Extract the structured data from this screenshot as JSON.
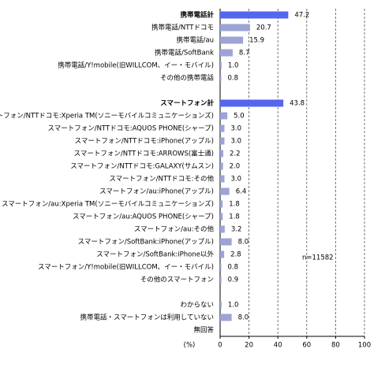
{
  "chart_data": {
    "type": "bar",
    "orientation": "horizontal",
    "categories": [
      "携帯電話計",
      "携帯電話/NTTドコモ",
      "携帯電話/au",
      "携帯電話/SoftBank",
      "携帯電話/Y!mobile(旧WILLCOM、イー・モバイル)",
      "その他の携帯電話",
      null,
      "スマートフォン計",
      "スマートフォン/NTTドコモ:Xperia TM(ソニーモバイルコミュニケーションズ)",
      "スマートフォン/NTTドコモ:AQUOS PHONE(シャープ)",
      "スマートフォン/NTTドコモ:iPhone(アップル)",
      "スマートフォン/NTTドコモ:ARROWS(富士通)",
      "スマートフォン/NTTドコモ:GALAXY(サムスン)",
      "スマートフォン/NTTドコモ:その他",
      "スマートフォン/au:iPhone(アップル)",
      "スマートフォン/au:Xperia TM(ソニーモバイルコミュニケーションズ)",
      "スマートフォン/au:AQUOS PHONE(シャープ)",
      "スマートフォン/au:その他",
      "スマートフォン/SoftBank:iPhone(アップル)",
      "スマートフォン/SoftBank:iPhone以外",
      "スマートフォン/Y!mobile(旧WILLCOM、イー・モバイル)",
      "その他のスマートフォン",
      null,
      "わからない",
      "携帯電話・スマートフォンは利用していない",
      "無回答"
    ],
    "values": [
      47.2,
      20.7,
      15.9,
      8.7,
      1.0,
      0.8,
      null,
      43.8,
      5.0,
      3.0,
      3.0,
      2.2,
      2.0,
      3.0,
      6.4,
      1.8,
      1.8,
      3.2,
      8.0,
      2.8,
      0.8,
      0.9,
      null,
      1.0,
      8.0,
      null
    ],
    "value_labels": [
      "47.2",
      "20.7",
      "15.9",
      "8.7",
      "1.0",
      "0.8",
      null,
      "43.8",
      "5.0",
      "3.0",
      "3.0",
      "2.2",
      "2.0",
      "3.0",
      "6.4",
      "1.8",
      "1.8",
      "3.2",
      "8.0",
      "2.8",
      "0.8",
      "0.9",
      null,
      "1.0",
      "8.0",
      null
    ],
    "color": "#9ea3d6",
    "emphasis_color": "#5566ee",
    "emphasis": [
      0,
      7
    ],
    "xlim": [
      0,
      100
    ],
    "xticks": [
      0,
      20,
      40,
      60,
      80,
      100
    ],
    "grid": true,
    "xlabel": "(%)",
    "annotation": "n=11582"
  }
}
